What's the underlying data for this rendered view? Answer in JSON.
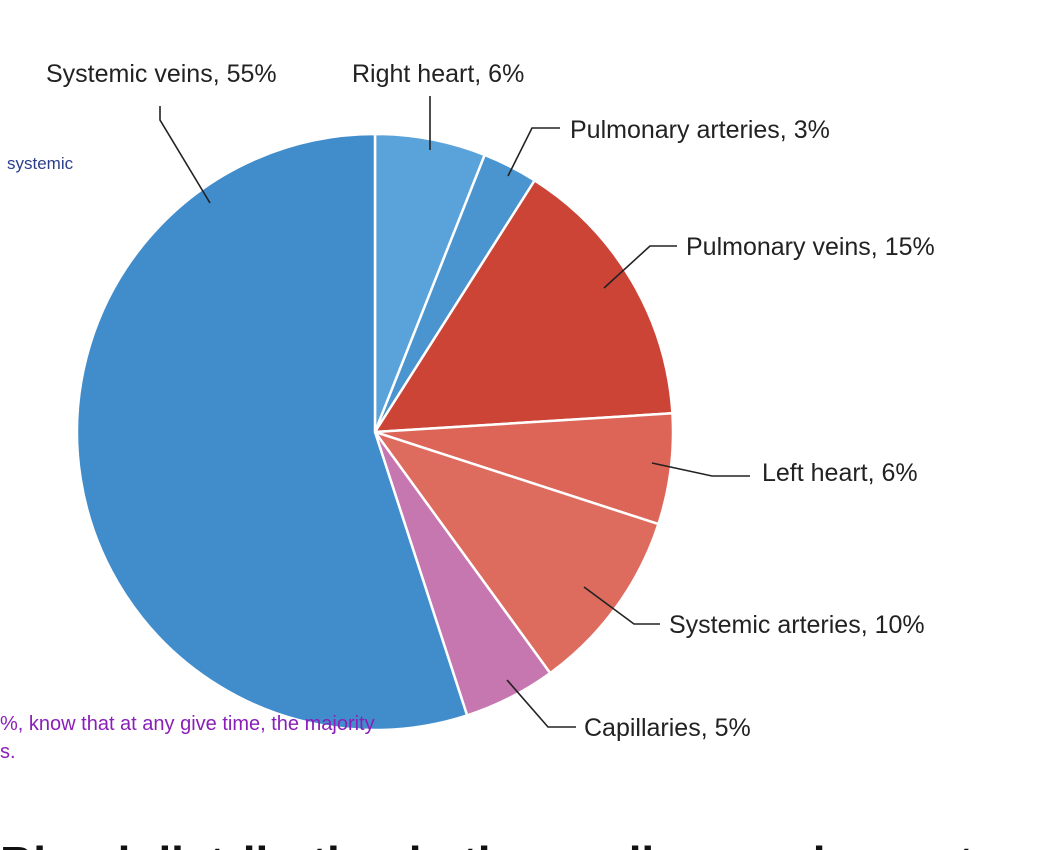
{
  "chart_data": {
    "type": "pie",
    "slices": [
      {
        "label": "Right heart, 6%",
        "name": "Right heart",
        "value": 6,
        "color": "#5aa2da"
      },
      {
        "label": "Pulmonary arteries, 3%",
        "name": "Pulmonary arteries",
        "value": 3,
        "color": "#4a94d0"
      },
      {
        "label": "Pulmonary veins, 15%",
        "name": "Pulmonary veins",
        "value": 15,
        "color": "#cc4436"
      },
      {
        "label": "Left heart, 6%",
        "name": "Left heart",
        "value": 6,
        "color": "#dd6558"
      },
      {
        "label": "Systemic arteries, 10%",
        "name": "Systemic arteries",
        "value": 10,
        "color": "#dd6b5e"
      },
      {
        "label": "Capillaries, 5%",
        "name": "Capillaries",
        "value": 5,
        "color": "#c677b0"
      },
      {
        "label": "Systemic veins, 55%",
        "name": "Systemic veins",
        "value": 55,
        "color": "#418dcb"
      }
    ],
    "start_angle": "12 o'clock",
    "direction": "clockwise",
    "slice_border_color": "#ffffff",
    "leader_line_color": "#222222"
  },
  "background_text": {
    "systemic_fragment": "systemic",
    "majority_fragment": "%, know that at any give time, the majority",
    "trailing_fragment": "s.",
    "heading_fragment": "Blood distribution in the cardiovascular system"
  }
}
